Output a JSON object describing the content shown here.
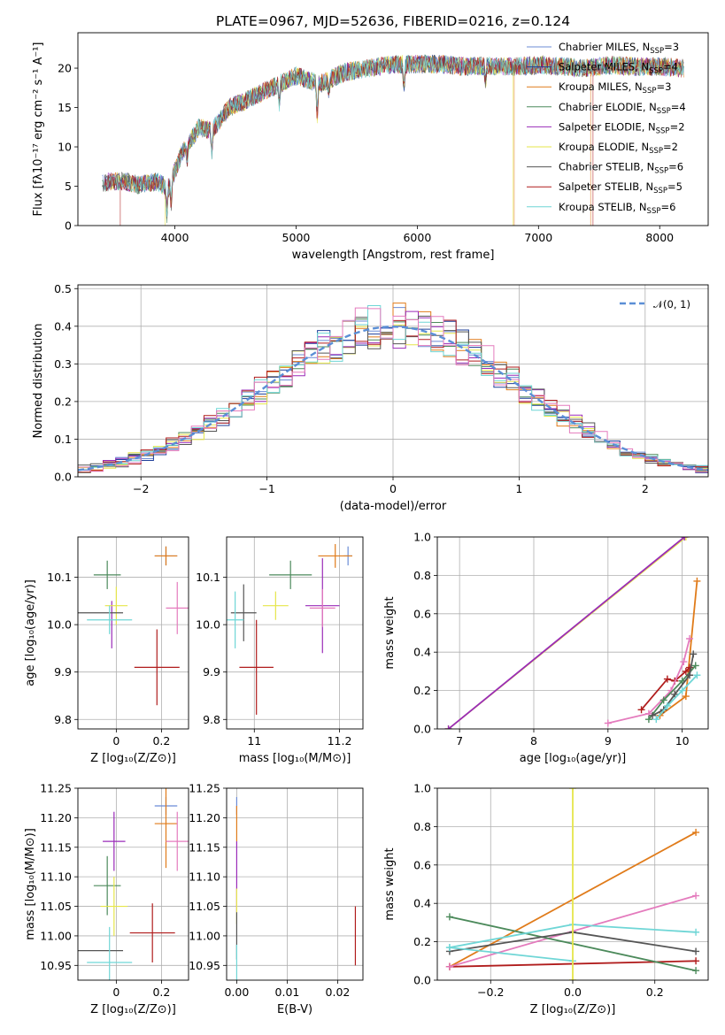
{
  "colors": {
    "chabrier_miles": "#6b8bd6",
    "salpeter_miles": "#1f3f9a",
    "kroupa_miles": "#e07b1a",
    "chabrier_elodie": "#4c8a5b",
    "salpeter_elodie": "#9a2bb8",
    "kroupa_elodie": "#e6e64a",
    "chabrier_stelib": "#555555",
    "salpeter_stelib": "#b01c1c",
    "kroupa_stelib": "#6fd6d6",
    "pink": "#e47bbd",
    "normal": "#5b8fd6"
  },
  "chart_data": [
    {
      "id": "spectrum",
      "type": "line",
      "title": "PLATE=0967, MJD=52636, FIBERID=0216, z=0.124",
      "xlabel": "wavelength [Angstrom, rest frame]",
      "ylabel": "Flux [fλ10⁻¹⁷ erg cm⁻² s⁻¹ A⁻¹]",
      "xlim": [
        3200,
        8400
      ],
      "ylim": [
        0,
        24.5
      ],
      "xticks": [
        4000,
        5000,
        6000,
        7000,
        8000
      ],
      "yticks": [
        0,
        5,
        10,
        15,
        20
      ],
      "grid": false,
      "legend_position": "right",
      "legend": [
        "Chabrier MILES, N_SSP=3",
        "Salpeter MILES, N_SSP=4",
        "Kroupa MILES, N_SSP=3",
        "Chabrier ELODIE, N_SSP=4",
        "Salpeter ELODIE, N_SSP=2",
        "Kroupa ELODIE, N_SSP=2",
        "Chabrier STELIB, N_SSP=6",
        "Salpeter STELIB, N_SSP=5",
        "Kroupa STELIB, N_SSP=6"
      ],
      "continuum": [
        [
          3400,
          5.4
        ],
        [
          3550,
          5.7
        ],
        [
          3700,
          5.2
        ],
        [
          3850,
          5.6
        ],
        [
          3950,
          4.8
        ],
        [
          4050,
          9.0
        ],
        [
          4200,
          12.5
        ],
        [
          4300,
          12.0
        ],
        [
          4450,
          15.0
        ],
        [
          4600,
          16.0
        ],
        [
          4800,
          17.5
        ],
        [
          5000,
          19.0
        ],
        [
          5200,
          18.0
        ],
        [
          5400,
          19.5
        ],
        [
          5600,
          20.0
        ],
        [
          5800,
          20.5
        ],
        [
          6000,
          20.5
        ],
        [
          6200,
          20.5
        ],
        [
          6400,
          20.2
        ],
        [
          6600,
          20.3
        ],
        [
          6800,
          20.2
        ],
        [
          7000,
          20.4
        ],
        [
          7200,
          20.2
        ],
        [
          7400,
          20.0
        ],
        [
          7600,
          20.4
        ],
        [
          7800,
          20.2
        ],
        [
          8000,
          20.2
        ],
        [
          8200,
          20.0
        ]
      ]
    },
    {
      "id": "residuals",
      "type": "line",
      "xlabel": "(data-model)/error",
      "ylabel": "Normed distribution",
      "xlim": [
        -2.5,
        2.5
      ],
      "ylim": [
        0,
        0.51
      ],
      "xticks": [
        -2,
        -1,
        0,
        1,
        2
      ],
      "yticks": [
        0.0,
        0.1,
        0.2,
        0.3,
        0.4,
        0.5
      ],
      "grid": true,
      "legend_position": "top-right",
      "legend": [
        "𝒩(0, 1)"
      ]
    },
    {
      "id": "age_vs_Z",
      "type": "scatter",
      "xlabel": "Z [log₁₀(Z/Z⊙)]",
      "ylabel": "age  [log₁₀(age/yr)]",
      "xlim": [
        -0.17,
        0.32
      ],
      "ylim": [
        9.78,
        10.185
      ],
      "xticks": [
        0.0,
        0.2
      ],
      "yticks": [
        9.8,
        9.9,
        10.0,
        10.1
      ],
      "grid": true,
      "points": [
        {
          "series": "Chabrier MILES",
          "x": 0.22,
          "y": 10.145,
          "xerr": 0.05,
          "yerr": 0.02
        },
        {
          "series": "Kroupa MILES",
          "x": 0.22,
          "y": 10.145,
          "xerr": 0.05,
          "yerr": 0.02
        },
        {
          "series": "Chabrier ELODIE",
          "x": -0.04,
          "y": 10.105,
          "xerr": 0.06,
          "yerr": 0.03
        },
        {
          "series": "Salpeter ELODIE",
          "x": -0.02,
          "y": 10.0,
          "xerr": 0.0,
          "yerr": 0.05
        },
        {
          "series": "Kroupa ELODIE",
          "x": 0.0,
          "y": 10.04,
          "xerr": 0.05,
          "yerr": 0.04
        },
        {
          "series": "Chabrier STELIB",
          "x": -0.07,
          "y": 10.025,
          "xerr": 0.1,
          "yerr": 0.0
        },
        {
          "series": "Salpeter STELIB",
          "x": 0.18,
          "y": 9.91,
          "xerr": 0.1,
          "yerr": 0.08
        },
        {
          "series": "Kroupa STELIB",
          "x": -0.03,
          "y": 10.01,
          "xerr": 0.1,
          "yerr": 0.03
        },
        {
          "series": "pink",
          "x": 0.27,
          "y": 10.035,
          "xerr": 0.05,
          "yerr": 0.055
        }
      ]
    },
    {
      "id": "age_vs_mass",
      "type": "scatter",
      "xlabel": "mass [log₁₀(M/M⊙)]",
      "ylim": [
        9.78,
        10.185
      ],
      "xlim": [
        10.935,
        11.255
      ],
      "xticks": [
        11.0,
        11.2
      ],
      "yticks": [
        9.8,
        9.9,
        10.0,
        10.1
      ],
      "grid": true,
      "points": [
        {
          "series": "Chabrier MILES",
          "x": 11.22,
          "y": 10.145,
          "xerr": 0.01,
          "yerr": 0.02
        },
        {
          "series": "Kroupa MILES",
          "x": 11.19,
          "y": 10.145,
          "xerr": 0.04,
          "yerr": 0.025
        },
        {
          "series": "Chabrier ELODIE",
          "x": 11.085,
          "y": 10.105,
          "xerr": 0.05,
          "yerr": 0.03
        },
        {
          "series": "Salpeter ELODIE",
          "x": 11.16,
          "y": 10.04,
          "xerr": 0.04,
          "yerr": 0.1
        },
        {
          "series": "Kroupa ELODIE",
          "x": 11.05,
          "y": 10.04,
          "xerr": 0.03,
          "yerr": 0.03
        },
        {
          "series": "Chabrier STELIB",
          "x": 10.975,
          "y": 10.025,
          "xerr": 0.03,
          "yerr": 0.06
        },
        {
          "series": "Salpeter STELIB",
          "x": 11.005,
          "y": 9.91,
          "xerr": 0.04,
          "yerr": 0.1
        },
        {
          "series": "Kroupa STELIB",
          "x": 10.955,
          "y": 10.01,
          "xerr": 0.02,
          "yerr": 0.06
        },
        {
          "series": "pink",
          "x": 11.16,
          "y": 10.035,
          "xerr": 0.03,
          "yerr": 0.04
        }
      ]
    },
    {
      "id": "mass_weight_vs_age",
      "type": "line",
      "xlabel": "age  [log₁₀(age/yr)]",
      "ylabel": "mass weight",
      "xlim": [
        6.7,
        10.35
      ],
      "ylim": [
        0.0,
        1.0
      ],
      "xticks": [
        7,
        8,
        9,
        10
      ],
      "yticks": [
        0.0,
        0.2,
        0.4,
        0.6,
        0.8,
        1.0
      ],
      "grid": true,
      "series": [
        {
          "name": "Kroupa ELODIE",
          "x": [
            6.85,
            10.05
          ],
          "y": [
            0.0,
            1.0
          ]
        },
        {
          "name": "Salpeter ELODIE",
          "x": [
            6.85,
            10.03
          ],
          "y": [
            0.0,
            1.0
          ]
        },
        {
          "name": "Kroupa MILES",
          "x": [
            9.7,
            10.05,
            10.2
          ],
          "y": [
            0.07,
            0.17,
            0.77
          ]
        },
        {
          "name": "Salpeter STELIB",
          "x": [
            9.45,
            9.8,
            9.9,
            10.05,
            10.1
          ],
          "y": [
            0.1,
            0.26,
            0.25,
            0.3,
            0.32
          ]
        },
        {
          "name": "pink",
          "x": [
            9.0,
            9.55,
            9.85,
            10.02,
            10.1
          ],
          "y": [
            0.03,
            0.08,
            0.2,
            0.35,
            0.47
          ]
        },
        {
          "name": "Chabrier ELODIE",
          "x": [
            9.55,
            9.75,
            10.0,
            10.18
          ],
          "y": [
            0.05,
            0.15,
            0.25,
            0.33
          ]
        },
        {
          "name": "Chabrier STELIB",
          "x": [
            9.6,
            9.75,
            9.9,
            10.1,
            10.15
          ],
          "y": [
            0.07,
            0.1,
            0.18,
            0.28,
            0.39
          ]
        },
        {
          "name": "Kroupa STELIB",
          "x": [
            9.65,
            9.8,
            10.0,
            10.2
          ],
          "y": [
            0.05,
            0.12,
            0.2,
            0.28
          ]
        }
      ]
    },
    {
      "id": "mass_vs_Z",
      "type": "scatter",
      "xlabel": "Z [log₁₀(Z/Z⊙)]",
      "ylabel": "mass [log₁₀(M/M⊙)]",
      "xlim": [
        -0.17,
        0.32
      ],
      "ylim": [
        10.925,
        11.25
      ],
      "xticks": [
        0.0,
        0.2
      ],
      "yticks": [
        10.95,
        11.0,
        11.05,
        11.1,
        11.15,
        11.2,
        11.25
      ],
      "grid": true,
      "points": [
        {
          "series": "Chabrier MILES",
          "x": 0.22,
          "y": 11.22,
          "xerr": 0.05,
          "yerr": 0.015
        },
        {
          "series": "Kroupa MILES",
          "x": 0.22,
          "y": 11.19,
          "xerr": 0.05,
          "yerr": 0.075
        },
        {
          "series": "Chabrier ELODIE",
          "x": -0.04,
          "y": 11.085,
          "xerr": 0.06,
          "yerr": 0.05
        },
        {
          "series": "Salpeter ELODIE",
          "x": -0.01,
          "y": 11.16,
          "xerr": 0.05,
          "yerr": 0.05
        },
        {
          "series": "Kroupa ELODIE",
          "x": -0.01,
          "y": 11.05,
          "xerr": 0.06,
          "yerr": 0.05
        },
        {
          "series": "Chabrier STELIB",
          "x": -0.07,
          "y": 10.975,
          "xerr": 0.1,
          "yerr": 0.0
        },
        {
          "series": "Salpeter STELIB",
          "x": 0.16,
          "y": 11.005,
          "xerr": 0.1,
          "yerr": 0.05
        },
        {
          "series": "Kroupa STELIB",
          "x": -0.03,
          "y": 10.955,
          "xerr": 0.1,
          "yerr": 0.06
        },
        {
          "series": "pink",
          "x": 0.27,
          "y": 11.16,
          "xerr": 0.05,
          "yerr": 0.05
        }
      ]
    },
    {
      "id": "mass_vs_ebv",
      "type": "scatter",
      "xlabel": "E(B-V)",
      "xlim": [
        -0.002,
        0.025
      ],
      "ylim": [
        10.925,
        11.25
      ],
      "xticks": [
        0.0,
        0.01,
        0.02
      ],
      "xticklabels": [
        "0.00",
        "0.01",
        "0.02"
      ],
      "yticks": [
        10.95,
        11.0,
        11.05,
        11.1,
        11.15,
        11.2,
        11.25
      ],
      "grid": true,
      "points": [
        {
          "series": "Chabrier MILES",
          "x": 0.0,
          "y": 11.22,
          "xerr": 0.0,
          "yerr": 0.015
        },
        {
          "series": "Kroupa MILES",
          "x": 0.0,
          "y": 11.19,
          "xerr": 0.0,
          "yerr": 0.03
        },
        {
          "series": "Salpeter ELODIE",
          "x": 0.0,
          "y": 11.1,
          "xerr": 0.0,
          "yerr": 0.06
        },
        {
          "series": "Kroupa ELODIE",
          "x": 0.0,
          "y": 11.05,
          "xerr": 0.0,
          "yerr": 0.03
        },
        {
          "series": "Chabrier STELIB",
          "x": 0.0,
          "y": 11.0,
          "xerr": 0.0,
          "yerr": 0.04
        },
        {
          "series": "Kroupa STELIB",
          "x": 0.0,
          "y": 10.955,
          "xerr": 0.0,
          "yerr": 0.03
        },
        {
          "series": "Salpeter STELIB",
          "x": 0.0235,
          "y": 11.0,
          "xerr": 0.0,
          "yerr": 0.05
        }
      ]
    },
    {
      "id": "mass_weight_vs_Z",
      "type": "line",
      "xlabel": "Z [log₁₀(Z/Z⊙)]",
      "ylabel": "mass weight",
      "xlim": [
        -0.33,
        0.33
      ],
      "ylim": [
        0.0,
        1.0
      ],
      "xticks": [
        -0.2,
        0.0,
        0.2
      ],
      "xticklabels": [
        "−0.2",
        "0.0",
        "0.2"
      ],
      "yticks": [
        0.0,
        0.2,
        0.4,
        0.6,
        0.8,
        1.0
      ],
      "grid": true,
      "series": [
        {
          "name": "Kroupa MILES",
          "x": [
            -0.3,
            0.3
          ],
          "y": [
            0.07,
            0.77
          ]
        },
        {
          "name": "Salpeter STELIB",
          "x": [
            -0.3,
            0.3
          ],
          "y": [
            0.07,
            0.1
          ]
        },
        {
          "name": "pink",
          "x": [
            -0.3,
            0.3
          ],
          "y": [
            0.07,
            0.44
          ]
        },
        {
          "name": "Chabrier ELODIE",
          "x": [
            -0.3,
            0.3
          ],
          "y": [
            0.33,
            0.05
          ]
        },
        {
          "name": "Chabrier STELIB",
          "x": [
            -0.3,
            0.0,
            0.3
          ],
          "y": [
            0.15,
            0.25,
            0.15
          ]
        },
        {
          "name": "Kroupa STELIB",
          "x": [
            -0.3,
            0.0,
            0.3
          ],
          "y": [
            0.17,
            0.29,
            0.25
          ]
        },
        {
          "name": "Kroupa STELIB b",
          "x": [
            -0.3,
            0.0
          ],
          "y": [
            0.17,
            0.1
          ]
        },
        {
          "name": "Kroupa ELODIE",
          "x": [
            0.0,
            0.0
          ],
          "y": [
            0.0,
            1.0
          ]
        }
      ]
    }
  ]
}
